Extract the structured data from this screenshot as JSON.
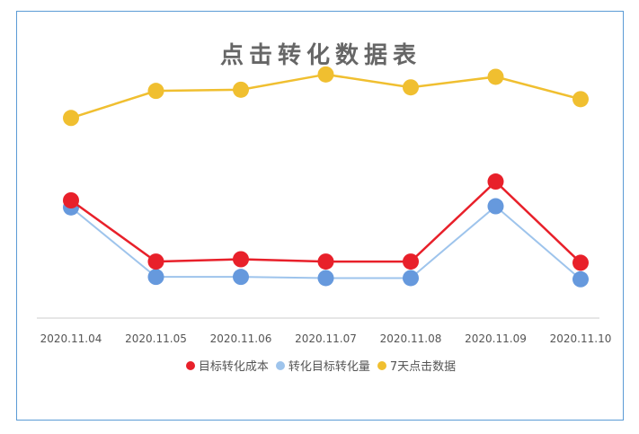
{
  "chart_data": {
    "type": "line",
    "title": "点击转化数据表",
    "categories": [
      "2020.11.04",
      "2020.11.05",
      "2020.11.06",
      "2020.11.07",
      "2020.11.08",
      "2020.11.09",
      "2020.11.10"
    ],
    "series": [
      {
        "name": "目标转化成本",
        "color": "#e8202a",
        "values": [
          120,
          68,
          70,
          68,
          68,
          136,
          67
        ]
      },
      {
        "name": "转化目标转化量",
        "color": "#9ec4ec",
        "marker_color": "#6699dd",
        "values": [
          114,
          55,
          55,
          54,
          54,
          115,
          53
        ]
      },
      {
        "name": "7天点击数据",
        "color": "#f0bf30",
        "values": [
          190,
          213,
          214,
          227,
          216,
          225,
          206
        ]
      }
    ],
    "grid": false,
    "legend_position": "bottom"
  }
}
